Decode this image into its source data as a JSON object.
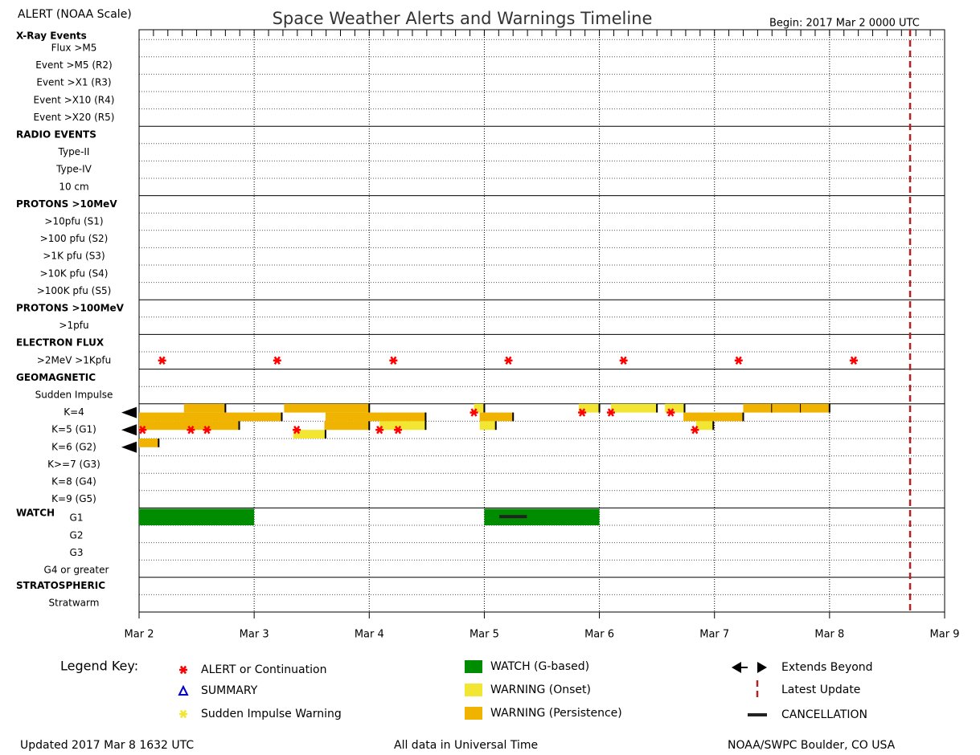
{
  "chart_data": {
    "type": "timeline",
    "scale_label": "ALERT (NOAA Scale)",
    "title": "Space Weather Alerts and Warnings Timeline",
    "begin": "Begin: 2017 Mar 2 0000 UTC",
    "xlim": [
      0,
      7
    ],
    "xticks": [
      {
        "value": 0,
        "label": "Mar 2"
      },
      {
        "value": 1,
        "label": "Mar 3"
      },
      {
        "value": 2,
        "label": "Mar 4"
      },
      {
        "value": 3,
        "label": "Mar 5"
      },
      {
        "value": 4,
        "label": "Mar 6"
      },
      {
        "value": 5,
        "label": "Mar 7"
      },
      {
        "value": 6,
        "label": "Mar 8"
      },
      {
        "value": 7,
        "label": "Mar 9"
      }
    ],
    "minor_ticks_per_day": 8,
    "latest_update": 6.7,
    "latest_update_color": "#b22222",
    "alert_color": "#ff0000",
    "sections": [
      {
        "title": "X-Ray Events",
        "rows": [
          {
            "label": "Flux >M5"
          },
          {
            "label": "Event >M5 (R2)"
          },
          {
            "label": "Event >X1 (R3)"
          },
          {
            "label": "Event >X10 (R4)"
          },
          {
            "label": "Event >X20 (R5)"
          }
        ]
      },
      {
        "title": "RADIO EVENTS",
        "rows": [
          {
            "label": "Type-II"
          },
          {
            "label": "Type-IV"
          },
          {
            "label": "10 cm"
          }
        ]
      },
      {
        "title": "PROTONS >10MeV",
        "rows": [
          {
            "label": ">10pfu (S1)"
          },
          {
            "label": ">100 pfu (S2)"
          },
          {
            "label": ">1K pfu (S3)"
          },
          {
            "label": ">10K pfu (S4)"
          },
          {
            "label": ">100K pfu (S5)"
          }
        ]
      },
      {
        "title": "PROTONS >100MeV",
        "rows": [
          {
            "label": ">1pfu"
          }
        ]
      },
      {
        "title": "ELECTRON FLUX",
        "rows": [
          {
            "label": ">2MeV >1Kpfu",
            "alerts": [
              0.2,
              1.2,
              2.21,
              3.21,
              4.21,
              5.21,
              6.21
            ]
          }
        ]
      },
      {
        "title": "GEOMAGNETIC",
        "rows": [
          {
            "label": "Sudden Impulse"
          }
        ]
      },
      {
        "rows": [
          {
            "label": "K=4",
            "extends_beyond": true,
            "alerts": [
              2.91,
              3.85,
              4.1,
              4.62
            ],
            "bars": [
              {
                "start": 0.39,
                "end": 0.75,
                "color": "#f0b400"
              },
              {
                "start": 1.26,
                "end": 2.0,
                "color": "#f0b400"
              },
              {
                "start": 0,
                "end": 1.24,
                "color": "#f0b400"
              },
              {
                "start": 1.62,
                "end": 2.49,
                "color": "#f0b400"
              },
              {
                "start": 2.91,
                "end": 3.0,
                "color": "#f2e632"
              },
              {
                "start": 2.96,
                "end": 3.25,
                "color": "#f0b400"
              },
              {
                "start": 3.82,
                "end": 4.0,
                "color": "#f2e632"
              },
              {
                "start": 4.1,
                "end": 4.5,
                "color": "#f2e632"
              },
              {
                "start": 4.57,
                "end": 4.74,
                "color": "#f2e632"
              },
              {
                "start": 4.73,
                "end": 5.25,
                "color": "#f0b400"
              },
              {
                "start": 5.25,
                "end": 5.5,
                "color": "#f0b400"
              },
              {
                "start": 5.5,
                "end": 5.75,
                "color": "#f0b400"
              },
              {
                "start": 5.75,
                "end": 6.0,
                "color": "#f0b400"
              }
            ]
          },
          {
            "label": "K=5 (G1)",
            "extends_beyond": true,
            "alerts": [
              0.03,
              0.45,
              0.59,
              1.37,
              2.09,
              2.25,
              4.83
            ],
            "bars": [
              {
                "start": 0,
                "end": 0.87,
                "color": "#f0b400"
              },
              {
                "start": 1.61,
                "end": 2.0,
                "color": "#f0b400"
              },
              {
                "start": 1.34,
                "end": 1.62,
                "color": "#f2e632"
              },
              {
                "start": 2.09,
                "end": 2.49,
                "color": "#f2e632"
              },
              {
                "start": 2.96,
                "end": 3.1,
                "color": "#f2e632"
              },
              {
                "start": 4.84,
                "end": 4.99,
                "color": "#f2e632"
              }
            ]
          },
          {
            "label": "K=6 (G2)",
            "extends_beyond": true,
            "bars": [
              {
                "start": 0,
                "end": 0.17,
                "color": "#f0b400"
              }
            ]
          },
          {
            "label": "K>=7 (G3)"
          },
          {
            "label": "K=8 (G4)"
          },
          {
            "label": "K=9 (G5)"
          }
        ]
      },
      {
        "title": "WATCH",
        "title_inline": true,
        "rows": [
          {
            "label": "G1",
            "watches": [
              {
                "start": 0,
                "end": 1,
                "color": "#008c00"
              },
              {
                "start": 3,
                "end": 4,
                "color": "#008c00"
              }
            ],
            "cancellations": [
              {
                "start": 3.13,
                "end": 3.37,
                "color": "#222222"
              }
            ]
          },
          {
            "label": "G2"
          },
          {
            "label": "G3"
          },
          {
            "label": "G4 or greater"
          }
        ]
      },
      {
        "title": "STRATOSPHERIC",
        "rows": [
          {
            "label": "Stratwarm"
          }
        ]
      }
    ],
    "legend": {
      "title": "Legend Key:",
      "items": [
        {
          "label": "ALERT or Continuation",
          "symbol": "asterisk",
          "color": "#ff0000"
        },
        {
          "label": "SUMMARY",
          "symbol": "triangle",
          "color": "#0000cc"
        },
        {
          "label": "Sudden Impulse Warning",
          "symbol": "asterisk",
          "color": "#f2e632"
        },
        {
          "label": "WATCH (G-based)",
          "symbol": "box",
          "color": "#008c00"
        },
        {
          "label": "WARNING (Onset)",
          "symbol": "box",
          "color": "#f2e632"
        },
        {
          "label": "WARNING (Persistence)",
          "symbol": "box",
          "color": "#f0b400"
        },
        {
          "label": "Extends Beyond",
          "symbol": "arrows",
          "color": "#000000"
        },
        {
          "label": "Latest Update",
          "symbol": "dash",
          "color": "#b22222"
        },
        {
          "label": "CANCELLATION",
          "symbol": "bar",
          "color": "#222222"
        }
      ]
    },
    "footer": {
      "updated": "Updated 2017 Mar  8 1632 UTC",
      "note": "All data in Universal Time",
      "source": "NOAA/SWPC Boulder, CO USA"
    }
  }
}
